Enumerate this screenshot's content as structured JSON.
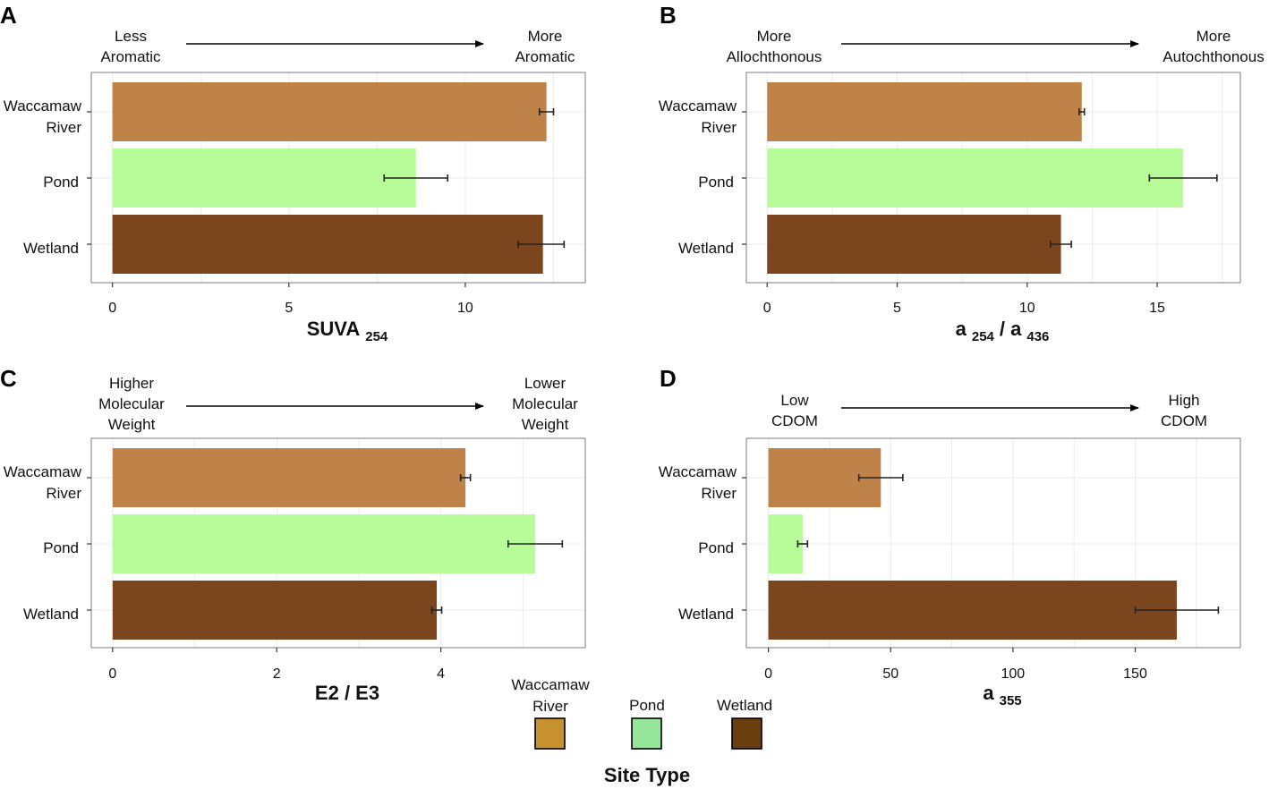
{
  "colors": {
    "waccamaw_bar": "#bf834a",
    "pond_bar": "#b8fc9a",
    "wetland_bar": "#7b451d",
    "waccamaw_legend": "#c8912f",
    "pond_legend": "#95e69a",
    "wetland_legend": "#6b3e0f"
  },
  "chart_data": [
    {
      "type": "bar",
      "orientation": "horizontal",
      "panel": "A",
      "title": "",
      "xlabel": "SUVA",
      "xlabel_sub": "254",
      "categories": [
        {
          "line1": "Waccamaw",
          "line2": "River"
        },
        {
          "line1": "Pond",
          "line2": ""
        },
        {
          "line1": "Wetland",
          "line2": ""
        }
      ],
      "values": [
        12.3,
        8.6,
        12.2
      ],
      "errors": [
        [
          12.1,
          12.5
        ],
        [
          7.7,
          9.5
        ],
        [
          11.5,
          12.8
        ]
      ],
      "xlim": [
        -0.6,
        13.4
      ],
      "gridlines": [
        0,
        2.5,
        5,
        7.5,
        10,
        12.5
      ],
      "ticks": [
        {
          "v": 0,
          "label": "0"
        },
        {
          "v": 5,
          "label": "5"
        },
        {
          "v": 10,
          "label": "10"
        }
      ],
      "annotation": {
        "left": [
          "Less",
          "Aromatic"
        ],
        "right": [
          "More",
          "Aromatic"
        ]
      }
    },
    {
      "type": "bar",
      "orientation": "horizontal",
      "panel": "B",
      "title": "",
      "xlabel": "a",
      "xlabel_sub": "254",
      "xlabel2": "/ a",
      "xlabel2_sub": "436",
      "categories": [
        {
          "line1": "Waccamaw",
          "line2": "River"
        },
        {
          "line1": "Pond",
          "line2": ""
        },
        {
          "line1": "Wetland",
          "line2": ""
        }
      ],
      "values": [
        12.1,
        16.0,
        11.3
      ],
      "errors": [
        [
          12.0,
          12.2
        ],
        [
          14.7,
          17.3
        ],
        [
          10.9,
          11.7
        ]
      ],
      "xlim": [
        -0.8,
        18.2
      ],
      "gridlines": [
        0,
        2.5,
        5,
        7.5,
        10,
        12.5,
        15,
        17.5
      ],
      "ticks": [
        {
          "v": 0,
          "label": "0"
        },
        {
          "v": 5,
          "label": "5"
        },
        {
          "v": 10,
          "label": "10"
        },
        {
          "v": 15,
          "label": "15"
        }
      ],
      "annotation": {
        "left": [
          "More",
          "Allochthonous"
        ],
        "right": [
          "More",
          "Autochthonous"
        ]
      }
    },
    {
      "type": "bar",
      "orientation": "horizontal",
      "panel": "C",
      "title": "",
      "xlabel": "E2 / E3",
      "xlabel_sub": "",
      "categories": [
        {
          "line1": "Waccamaw",
          "line2": "River"
        },
        {
          "line1": "Pond",
          "line2": ""
        },
        {
          "line1": "Wetland",
          "line2": ""
        }
      ],
      "values": [
        4.3,
        5.15,
        3.95
      ],
      "errors": [
        [
          4.24,
          4.36
        ],
        [
          4.82,
          5.48
        ],
        [
          3.89,
          4.01
        ]
      ],
      "xlim": [
        -0.26,
        5.76
      ],
      "gridlines": [
        0,
        1,
        2,
        3,
        4,
        5
      ],
      "ticks": [
        {
          "v": 0,
          "label": "0"
        },
        {
          "v": 2,
          "label": "2"
        },
        {
          "v": 4,
          "label": "4"
        }
      ],
      "annotation": {
        "left": [
          "Higher",
          "Molecular",
          "Weight"
        ],
        "right": [
          "Lower",
          "Molecular",
          "Weight"
        ]
      }
    },
    {
      "type": "bar",
      "orientation": "horizontal",
      "panel": "D",
      "title": "",
      "xlabel": "a",
      "xlabel_sub": "355",
      "categories": [
        {
          "line1": "Waccamaw",
          "line2": "River"
        },
        {
          "line1": "Pond",
          "line2": ""
        },
        {
          "line1": "Wetland",
          "line2": ""
        }
      ],
      "values": [
        46,
        14,
        167
      ],
      "errors": [
        [
          37,
          55
        ],
        [
          12,
          16
        ],
        [
          150,
          184
        ]
      ],
      "xlim": [
        -9,
        193
      ],
      "gridlines": [
        0,
        25,
        50,
        75,
        100,
        125,
        150,
        175
      ],
      "ticks": [
        {
          "v": 0,
          "label": "0"
        },
        {
          "v": 50,
          "label": "50"
        },
        {
          "v": 100,
          "label": "100"
        },
        {
          "v": 150,
          "label": "150"
        }
      ],
      "annotation": {
        "left": [
          "Low",
          "CDOM"
        ],
        "right": [
          "High",
          "CDOM"
        ]
      }
    }
  ],
  "legend": {
    "title": "Site Type",
    "items": [
      {
        "line1": "Waccamaw",
        "line2": "River",
        "color_key": "waccamaw_legend"
      },
      {
        "line1": "Pond",
        "line2": "",
        "color_key": "pond_legend"
      },
      {
        "line1": "Wetland",
        "line2": "",
        "color_key": "wetland_legend"
      }
    ]
  }
}
